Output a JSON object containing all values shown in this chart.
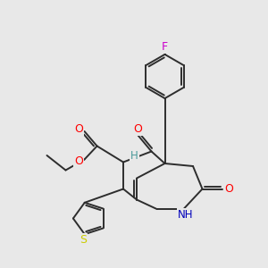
{
  "background_color": "#e8e8e8",
  "bond_color": "#2d2d2d",
  "atom_colors": {
    "O": "#ff0000",
    "N": "#0000bb",
    "S": "#cccc00",
    "F": "#cc00cc",
    "H": "#4a9a9a",
    "C": "#2d2d2d"
  }
}
